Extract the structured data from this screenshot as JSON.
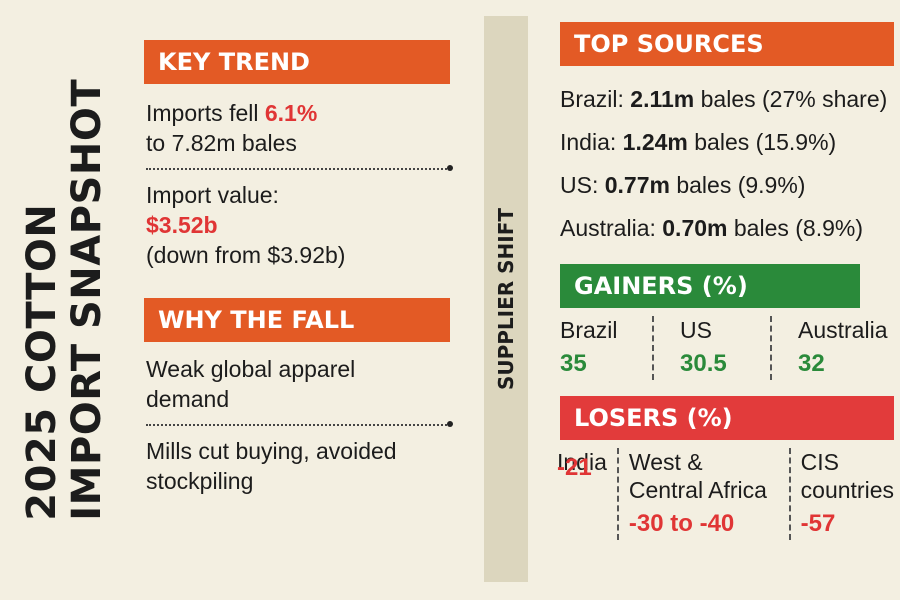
{
  "title": {
    "line1": "2025 COTTON",
    "line2": "IMPORT SNAPSHOT"
  },
  "key_trend": {
    "header": "KEY TREND",
    "line1_prefix": "Imports fell ",
    "line1_value": "6.1%",
    "line2": "to 7.82m bales",
    "value_label": "Import value:",
    "value": "$3.52b",
    "value_note": "(down from $3.92b)"
  },
  "why_fall": {
    "header": "WHY THE FALL",
    "reason1_line1": "Weak global apparel",
    "reason1_line2": "demand",
    "reason2_line1": "Mills cut buying, avoided",
    "reason2_line2": "stockpiling"
  },
  "divider_label": "SUPPLIER SHIFT",
  "top_sources": {
    "header": "TOP SOURCES",
    "rows": [
      {
        "country": "Brazil:",
        "amount": "2.11m",
        "rest": " bales (27% share)"
      },
      {
        "country": "India:",
        "amount": "1.24m",
        "rest": " bales (15.9%)"
      },
      {
        "country": "US:",
        "amount": "0.77m",
        "rest": " bales (9.9%)"
      },
      {
        "country": "Australia:",
        "amount": "0.70m",
        "rest": " bales (8.9%)"
      }
    ]
  },
  "gainers": {
    "header": "GAINERS (%)",
    "items": [
      {
        "label": "Brazil",
        "value": "35"
      },
      {
        "label": "US",
        "value": "30.5"
      },
      {
        "label": "Australia",
        "value": "32"
      }
    ]
  },
  "losers": {
    "header": "LOSERS (%)",
    "items": [
      {
        "label1": "India",
        "label2": "",
        "value": "-21"
      },
      {
        "label1": "West &",
        "label2": "Central Africa",
        "value": "-30 to -40"
      },
      {
        "label1": "CIS",
        "label2": "countries",
        "value": "-57"
      }
    ]
  },
  "colors": {
    "orange": "#e35a25",
    "green": "#2a8a3a",
    "red": "#e23b3b",
    "background": "#f3efe1"
  }
}
